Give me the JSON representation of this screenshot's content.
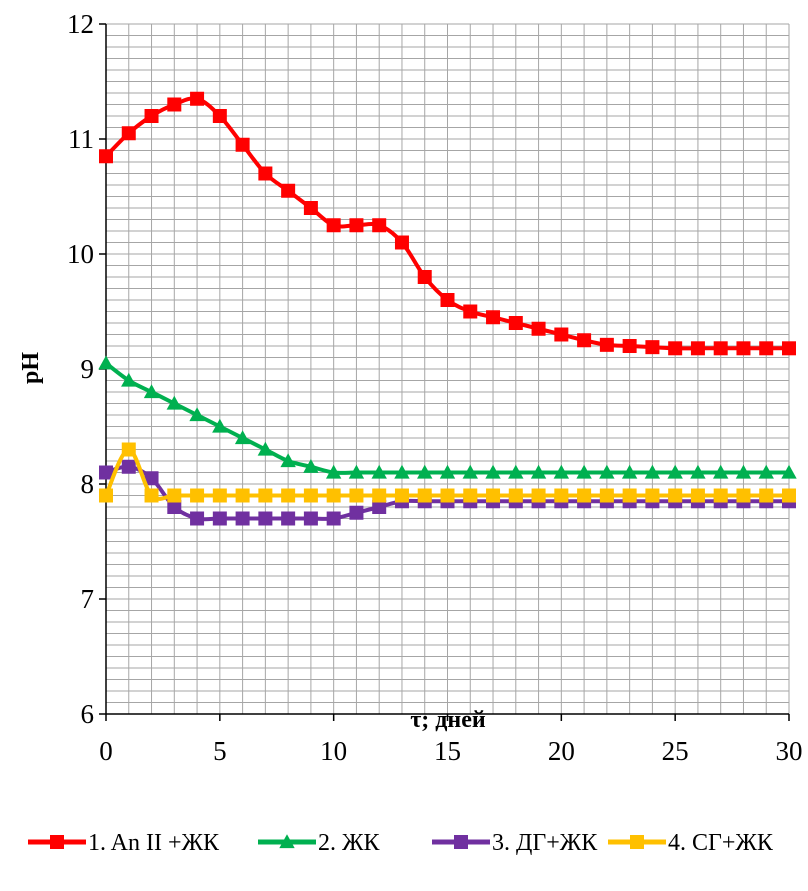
{
  "chart_data": {
    "type": "line",
    "title": "",
    "xlabel": "τ; дней",
    "ylabel": "pH",
    "xlim": [
      0,
      30
    ],
    "ylim": [
      6,
      12
    ],
    "xticks": [
      "0",
      "5",
      "10",
      "15",
      "20",
      "25",
      "30"
    ],
    "yticks": [
      "6",
      "7",
      "8",
      "9",
      "10",
      "11",
      "12"
    ],
    "grid": true,
    "legend_position": "bottom",
    "x": [
      0,
      1,
      2,
      3,
      4,
      5,
      6,
      7,
      8,
      9,
      10,
      11,
      12,
      13,
      14,
      15,
      16,
      17,
      18,
      19,
      20,
      21,
      22,
      23,
      24,
      25,
      26,
      27,
      28,
      29,
      30
    ],
    "series": [
      {
        "name": "1. An II +ЖК",
        "color": "#ff0000",
        "marker": "square",
        "values": [
          10.85,
          11.05,
          11.2,
          11.3,
          11.35,
          11.2,
          10.95,
          10.7,
          10.55,
          10.4,
          10.25,
          10.25,
          10.25,
          10.1,
          9.8,
          9.6,
          9.5,
          9.45,
          9.4,
          9.35,
          9.3,
          9.25,
          9.21,
          9.2,
          9.19,
          9.18,
          9.18,
          9.18,
          9.18,
          9.18,
          9.18
        ]
      },
      {
        "name": "2. ЖК",
        "color": "#00b050",
        "marker": "triangle",
        "values": [
          9.05,
          8.9,
          8.8,
          8.7,
          8.6,
          8.5,
          8.4,
          8.3,
          8.2,
          8.15,
          8.1,
          8.1,
          8.1,
          8.1,
          8.1,
          8.1,
          8.1,
          8.1,
          8.1,
          8.1,
          8.1,
          8.1,
          8.1,
          8.1,
          8.1,
          8.1,
          8.1,
          8.1,
          8.1,
          8.1,
          8.1
        ]
      },
      {
        "name": "3. ДГ+ЖК",
        "color": "#7030a0",
        "marker": "square",
        "values": [
          8.1,
          8.15,
          8.05,
          7.8,
          7.7,
          7.7,
          7.7,
          7.7,
          7.7,
          7.7,
          7.7,
          7.75,
          7.8,
          7.85,
          7.85,
          7.85,
          7.85,
          7.85,
          7.85,
          7.85,
          7.85,
          7.85,
          7.85,
          7.85,
          7.85,
          7.85,
          7.85,
          7.85,
          7.85,
          7.85,
          7.85
        ]
      },
      {
        "name": "4. СГ+ЖК",
        "color": "#ffc000",
        "marker": "square",
        "values": [
          7.9,
          8.3,
          7.9,
          7.9,
          7.9,
          7.9,
          7.9,
          7.9,
          7.9,
          7.9,
          7.9,
          7.9,
          7.9,
          7.9,
          7.9,
          7.9,
          7.9,
          7.9,
          7.9,
          7.9,
          7.9,
          7.9,
          7.9,
          7.9,
          7.9,
          7.9,
          7.9,
          7.9,
          7.9,
          7.9,
          7.9
        ]
      }
    ]
  }
}
